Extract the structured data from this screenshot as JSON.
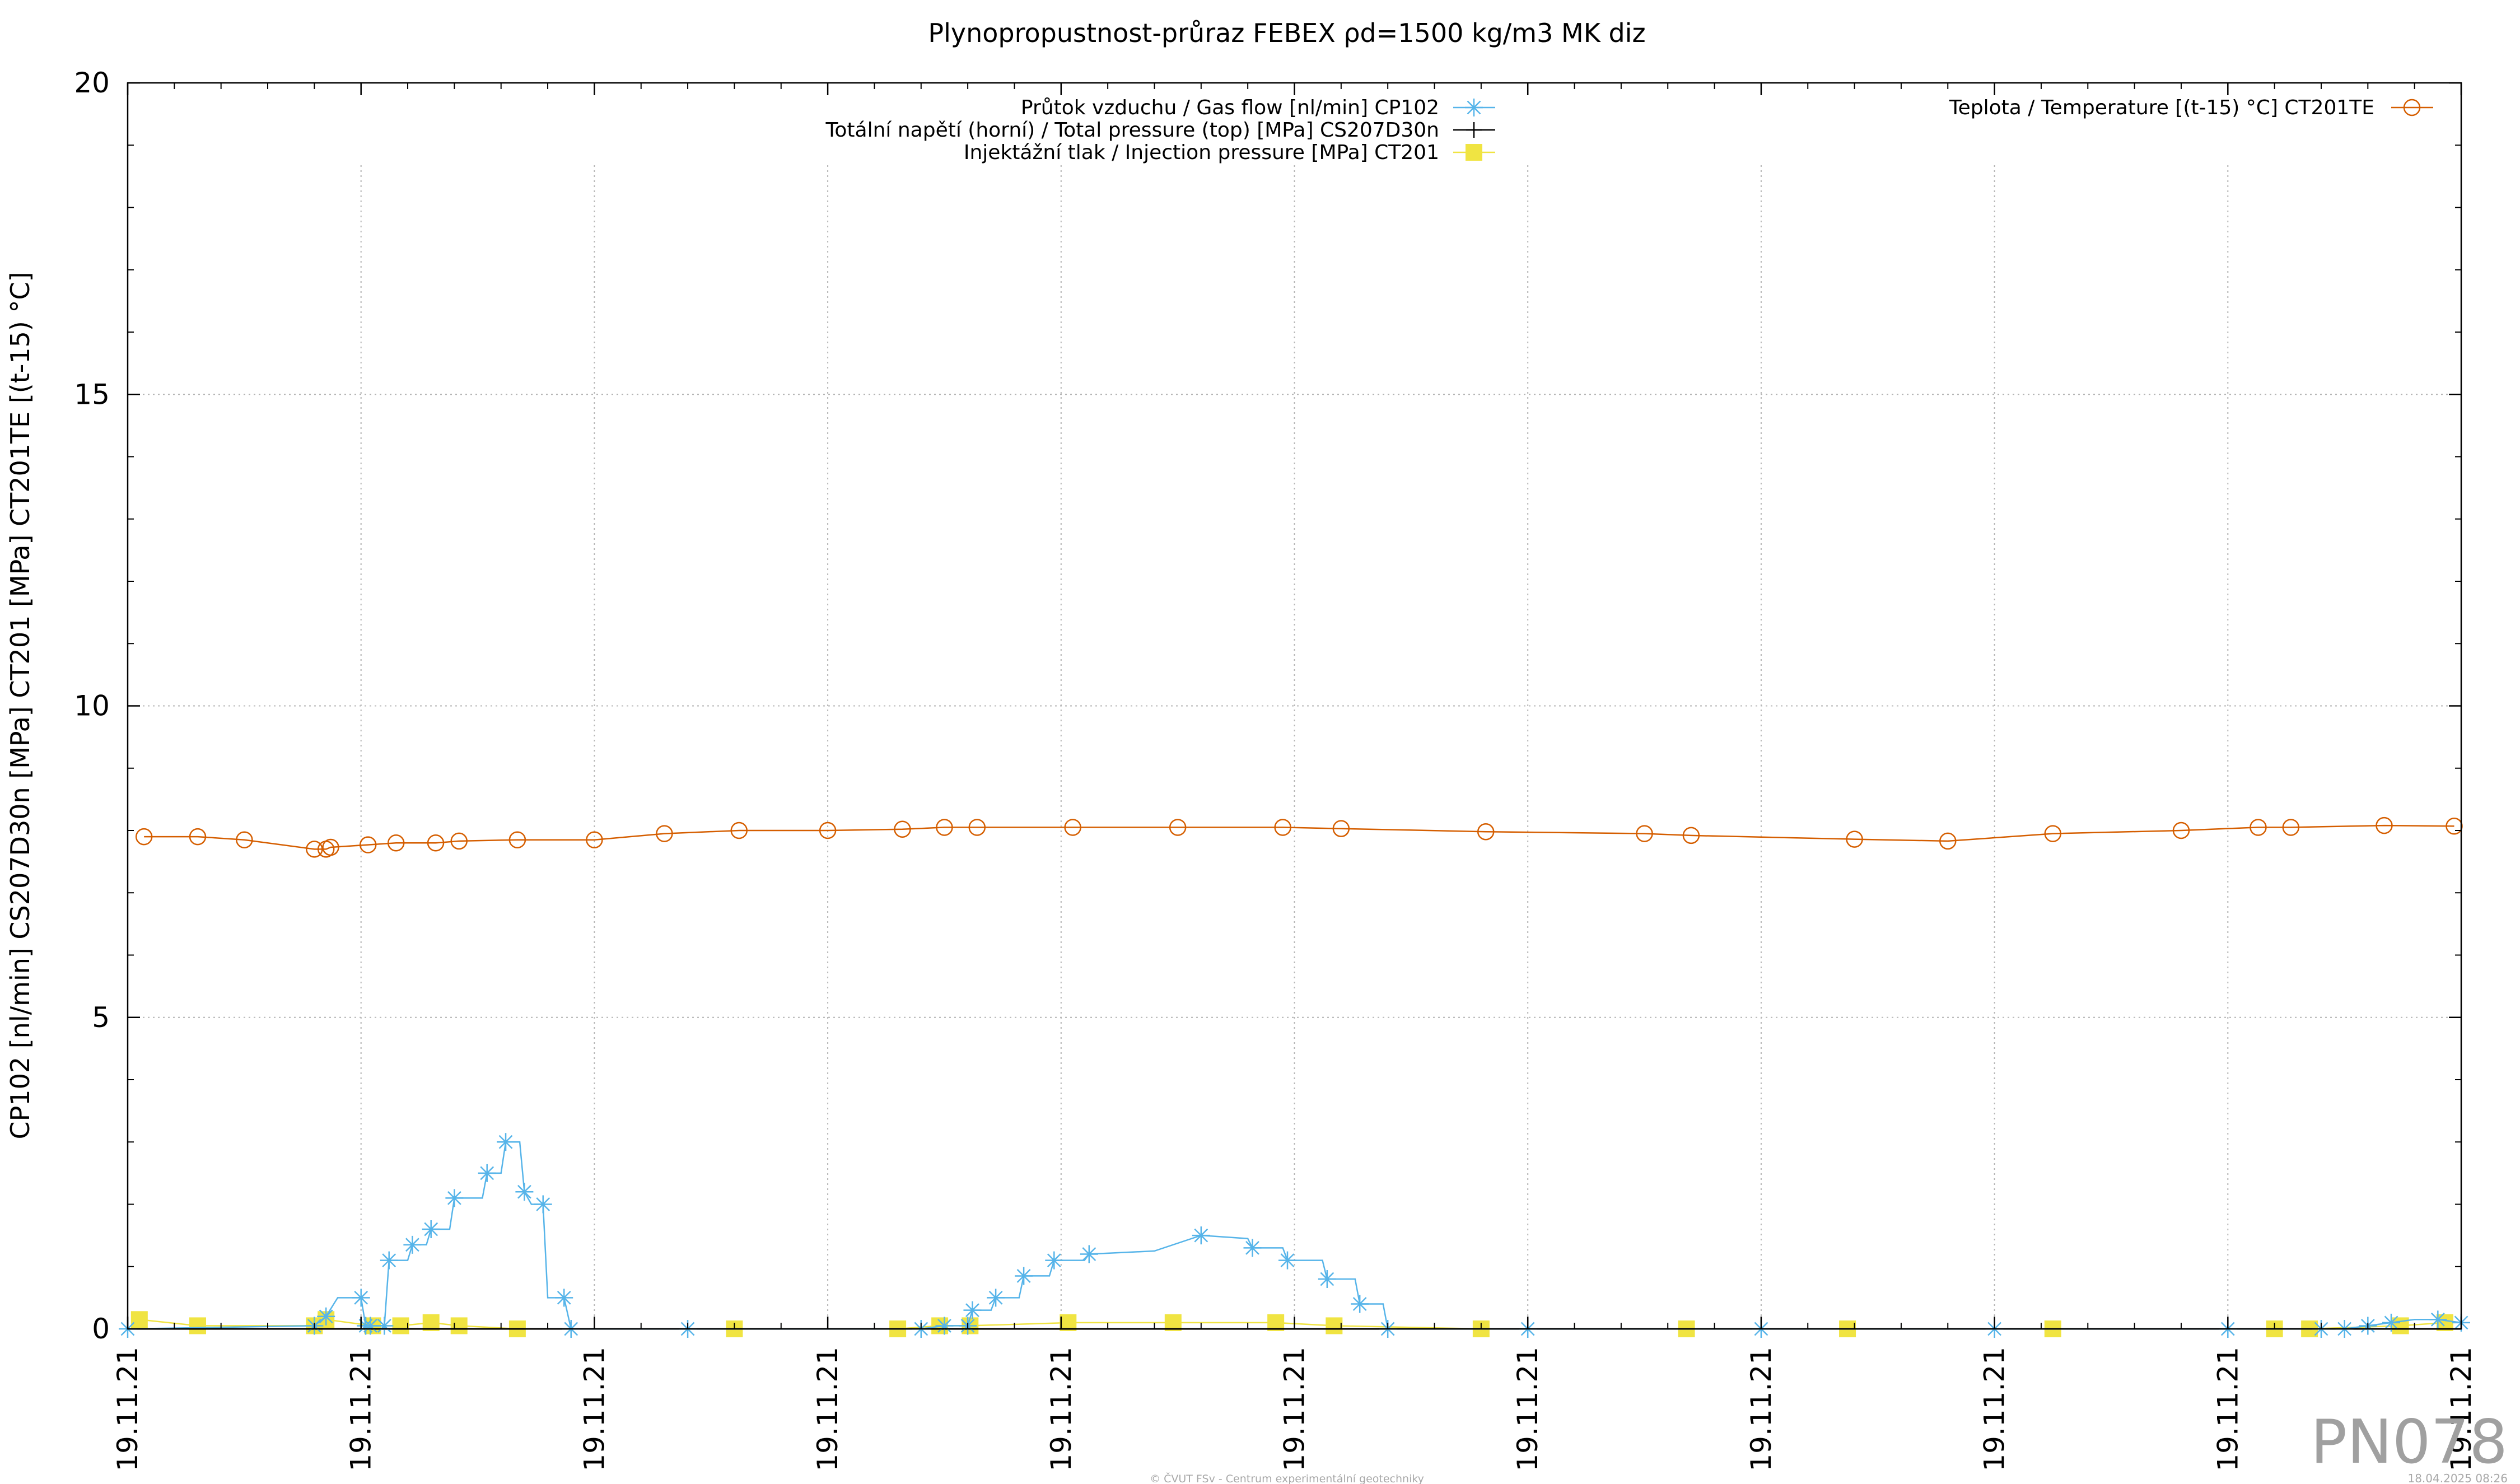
{
  "chart_data": {
    "type": "line",
    "title": "Plynopropustnost-průraz FEBEX ρd=1500 kg/m3 MK diz",
    "ylabel": "CP102 [nl/min] CS207D30n [MPa] CT201 [MPa] CT201TE [(t-15) °C]",
    "xlabel": "",
    "ylim": [
      0,
      20
    ],
    "yticks": [
      0,
      5,
      10,
      15,
      20
    ],
    "y_tick_labels": [
      "0",
      "5",
      "10",
      "15",
      "20"
    ],
    "xlim": [
      0,
      10
    ],
    "x_tick_labels": [
      "19.11.21",
      "19.11.21",
      "19.11.21",
      "19.11.21",
      "19.11.21",
      "19.11.21",
      "19.11.21",
      "19.11.21",
      "19.11.21",
      "19.11.21",
      "19.11.21"
    ],
    "grid": true,
    "legend_left_position": "top-center",
    "legend_right_position": "top-right",
    "series": [
      {
        "name": "Průtok vzduchu / Gas flow [nl/min] CP102",
        "color": "#56b4e9",
        "marker": "asterisk",
        "legend_group": "left",
        "x": [
          0.0,
          0.8,
          0.85,
          0.9,
          1.0,
          1.02,
          1.04,
          1.1,
          1.12,
          1.2,
          1.22,
          1.28,
          1.3,
          1.38,
          1.4,
          1.52,
          1.54,
          1.6,
          1.62,
          1.68,
          1.7,
          1.73,
          1.78,
          1.8,
          1.87,
          1.9,
          2.4,
          3.4,
          3.5,
          3.6,
          3.62,
          3.7,
          3.72,
          3.82,
          3.84,
          3.95,
          3.97,
          4.1,
          4.12,
          4.4,
          4.6,
          4.8,
          4.82,
          4.95,
          4.97,
          5.12,
          5.14,
          5.26,
          5.28,
          5.38,
          5.4,
          6.0,
          7.0,
          8.0,
          9.0,
          9.4,
          9.5,
          9.6,
          9.7,
          9.8,
          9.9,
          10.0
        ],
        "y": [
          0.0,
          0.05,
          0.2,
          0.5,
          0.5,
          0.05,
          0.05,
          0.05,
          1.1,
          1.1,
          1.35,
          1.35,
          1.6,
          1.6,
          2.1,
          2.1,
          2.5,
          2.5,
          3.0,
          3.0,
          2.2,
          2.0,
          2.0,
          0.5,
          0.5,
          0.0,
          0.0,
          0.0,
          0.05,
          0.05,
          0.3,
          0.3,
          0.5,
          0.5,
          0.85,
          0.85,
          1.1,
          1.1,
          1.2,
          1.25,
          1.5,
          1.45,
          1.3,
          1.3,
          1.1,
          1.1,
          0.8,
          0.8,
          0.4,
          0.4,
          0.0,
          0.0,
          0.0,
          0.0,
          0.0,
          0.0,
          0.0,
          0.05,
          0.1,
          0.15,
          0.15,
          0.1
        ]
      },
      {
        "name": "Totální napětí (horní) / Total pressure (top) [MPa] CS207D30n",
        "color": "#000000",
        "marker": "plus",
        "legend_group": "left",
        "x": [
          0,
          1,
          2,
          3,
          4,
          5,
          6,
          7,
          8,
          9,
          10
        ],
        "y": [
          0,
          0,
          0,
          0,
          0,
          0,
          0,
          0,
          0,
          0,
          0
        ]
      },
      {
        "name": "Injektážní tlak / Injection pressure [MPa] CT201",
        "color": "#f0e442",
        "marker": "square",
        "legend_group": "left",
        "x": [
          0.05,
          0.3,
          0.8,
          0.85,
          1.05,
          1.17,
          1.3,
          1.42,
          1.67,
          2.6,
          3.3,
          3.48,
          3.61,
          4.03,
          4.48,
          4.92,
          5.17,
          5.8,
          6.68,
          7.37,
          8.25,
          9.2,
          9.35,
          9.74,
          9.93
        ],
        "y": [
          0.15,
          0.05,
          0.05,
          0.15,
          0.05,
          0.05,
          0.1,
          0.05,
          0.0,
          0.0,
          0.0,
          0.05,
          0.05,
          0.1,
          0.1,
          0.1,
          0.05,
          0.0,
          0.0,
          0.0,
          0.0,
          0.0,
          0.0,
          0.05,
          0.1
        ]
      },
      {
        "name": "Teplota / Temperature [(t-15) °C] CT201TE",
        "color": "#d55e00",
        "marker": "circle",
        "legend_group": "right",
        "x": [
          0.07,
          0.3,
          0.5,
          0.8,
          0.85,
          0.87,
          1.03,
          1.15,
          1.32,
          1.42,
          1.67,
          2.0,
          2.3,
          2.62,
          3.0,
          3.32,
          3.5,
          3.64,
          4.05,
          4.5,
          4.95,
          5.2,
          5.82,
          6.5,
          6.7,
          7.4,
          7.8,
          8.25,
          8.8,
          9.13,
          9.27,
          9.67,
          9.97
        ],
        "y": [
          7.9,
          7.9,
          7.85,
          7.7,
          7.7,
          7.73,
          7.77,
          7.8,
          7.8,
          7.83,
          7.85,
          7.85,
          7.95,
          8.0,
          8.0,
          8.02,
          8.05,
          8.05,
          8.05,
          8.05,
          8.05,
          8.03,
          7.98,
          7.95,
          7.92,
          7.86,
          7.83,
          7.95,
          8.0,
          8.05,
          8.05,
          8.08,
          8.07
        ]
      }
    ]
  },
  "footer": {
    "credit": "© ČVUT FSv - Centrum experimentální geotechniky",
    "timestamp": "18.04.2025 08:26",
    "watermark": "PN078"
  }
}
